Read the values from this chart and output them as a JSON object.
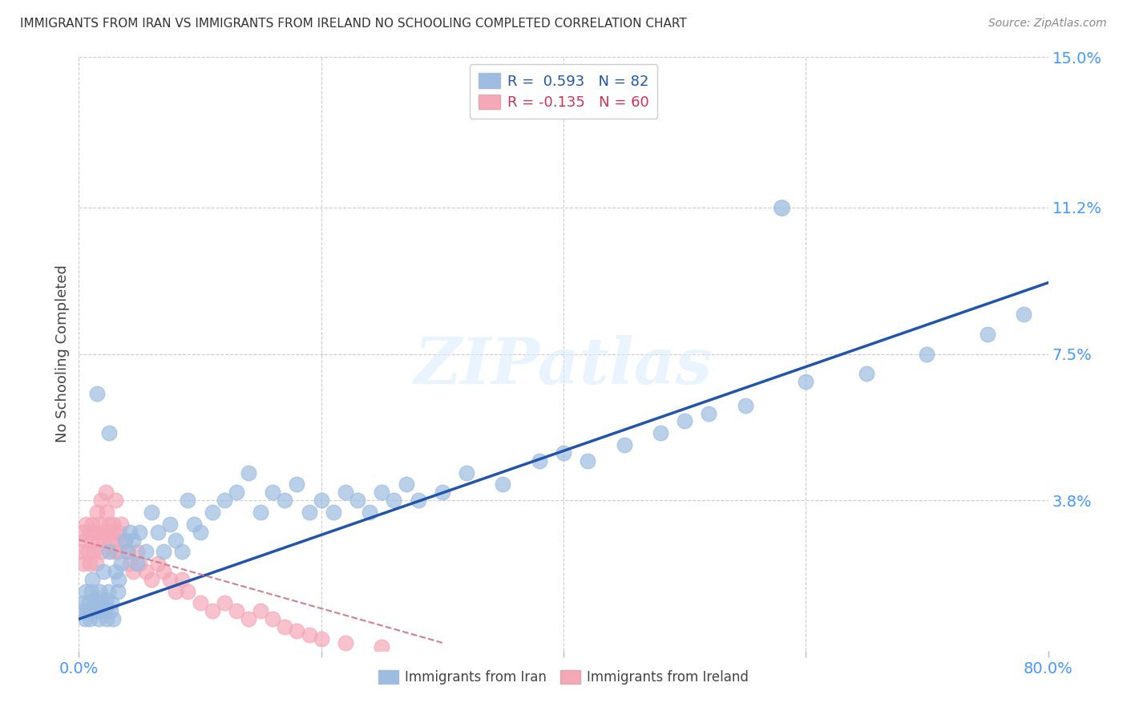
{
  "title": "IMMIGRANTS FROM IRAN VS IMMIGRANTS FROM IRELAND NO SCHOOLING COMPLETED CORRELATION CHART",
  "source": "Source: ZipAtlas.com",
  "ylabel": "No Schooling Completed",
  "xlim": [
    0.0,
    0.8
  ],
  "ylim": [
    0.0,
    0.15
  ],
  "xticks": [
    0.0,
    0.2,
    0.4,
    0.6,
    0.8
  ],
  "xtick_labels": [
    "0.0%",
    "",
    "",
    "",
    "80.0%"
  ],
  "yticks_right": [
    0.15,
    0.112,
    0.075,
    0.038,
    0.0
  ],
  "ytick_labels_right": [
    "15.0%",
    "11.2%",
    "7.5%",
    "3.8%",
    ""
  ],
  "iran_color": "#9dbce0",
  "ireland_color": "#f4a8b8",
  "iran_line_color": "#2255aa",
  "ireland_line_color": "#d08090",
  "legend_R_iran": "R =  0.593",
  "legend_N_iran": "N = 82",
  "legend_R_ireland": "R = -0.135",
  "legend_N_ireland": "N = 60",
  "legend_label_iran": "Immigrants from Iran",
  "legend_label_ireland": "Immigrants from Ireland",
  "watermark": "ZIPatlas",
  "background_color": "#ffffff",
  "grid_color": "#cccccc",
  "iran_scatter_x": [
    0.003,
    0.004,
    0.005,
    0.006,
    0.007,
    0.008,
    0.009,
    0.01,
    0.011,
    0.012,
    0.013,
    0.014,
    0.015,
    0.016,
    0.017,
    0.018,
    0.019,
    0.02,
    0.021,
    0.022,
    0.023,
    0.024,
    0.025,
    0.026,
    0.027,
    0.028,
    0.03,
    0.032,
    0.033,
    0.035,
    0.038,
    0.04,
    0.042,
    0.045,
    0.048,
    0.05,
    0.055,
    0.06,
    0.065,
    0.07,
    0.075,
    0.08,
    0.085,
    0.09,
    0.095,
    0.1,
    0.11,
    0.12,
    0.13,
    0.14,
    0.15,
    0.16,
    0.17,
    0.18,
    0.19,
    0.2,
    0.21,
    0.22,
    0.23,
    0.24,
    0.25,
    0.26,
    0.27,
    0.28,
    0.3,
    0.32,
    0.35,
    0.38,
    0.4,
    0.42,
    0.45,
    0.48,
    0.5,
    0.52,
    0.55,
    0.6,
    0.65,
    0.7,
    0.75,
    0.78,
    0.015,
    0.025
  ],
  "iran_scatter_y": [
    0.01,
    0.012,
    0.008,
    0.015,
    0.01,
    0.012,
    0.008,
    0.015,
    0.018,
    0.01,
    0.013,
    0.01,
    0.012,
    0.008,
    0.015,
    0.01,
    0.012,
    0.02,
    0.01,
    0.013,
    0.008,
    0.015,
    0.025,
    0.01,
    0.012,
    0.008,
    0.02,
    0.015,
    0.018,
    0.022,
    0.028,
    0.025,
    0.03,
    0.028,
    0.022,
    0.03,
    0.025,
    0.035,
    0.03,
    0.025,
    0.032,
    0.028,
    0.025,
    0.038,
    0.032,
    0.03,
    0.035,
    0.038,
    0.04,
    0.045,
    0.035,
    0.04,
    0.038,
    0.042,
    0.035,
    0.038,
    0.035,
    0.04,
    0.038,
    0.035,
    0.04,
    0.038,
    0.042,
    0.038,
    0.04,
    0.045,
    0.042,
    0.048,
    0.05,
    0.048,
    0.052,
    0.055,
    0.058,
    0.06,
    0.062,
    0.068,
    0.07,
    0.075,
    0.08,
    0.085,
    0.065,
    0.055
  ],
  "iran_outlier_x": [
    0.58
  ],
  "iran_outlier_y": [
    0.112
  ],
  "ireland_scatter_x": [
    0.002,
    0.003,
    0.004,
    0.005,
    0.006,
    0.007,
    0.008,
    0.009,
    0.01,
    0.011,
    0.012,
    0.013,
    0.014,
    0.015,
    0.016,
    0.017,
    0.018,
    0.019,
    0.02,
    0.021,
    0.022,
    0.023,
    0.024,
    0.025,
    0.026,
    0.027,
    0.028,
    0.029,
    0.03,
    0.031,
    0.032,
    0.033,
    0.035,
    0.038,
    0.04,
    0.042,
    0.045,
    0.048,
    0.05,
    0.055,
    0.06,
    0.065,
    0.07,
    0.075,
    0.08,
    0.085,
    0.09,
    0.1,
    0.11,
    0.12,
    0.13,
    0.14,
    0.15,
    0.16,
    0.17,
    0.18,
    0.19,
    0.2,
    0.22,
    0.25
  ],
  "ireland_scatter_y": [
    0.025,
    0.03,
    0.022,
    0.028,
    0.032,
    0.025,
    0.03,
    0.022,
    0.028,
    0.032,
    0.025,
    0.03,
    0.022,
    0.035,
    0.028,
    0.032,
    0.038,
    0.025,
    0.03,
    0.028,
    0.04,
    0.035,
    0.03,
    0.032,
    0.028,
    0.03,
    0.032,
    0.025,
    0.038,
    0.028,
    0.025,
    0.03,
    0.032,
    0.028,
    0.025,
    0.022,
    0.02,
    0.025,
    0.022,
    0.02,
    0.018,
    0.022,
    0.02,
    0.018,
    0.015,
    0.018,
    0.015,
    0.012,
    0.01,
    0.012,
    0.01,
    0.008,
    0.01,
    0.008,
    0.006,
    0.005,
    0.004,
    0.003,
    0.002,
    0.001
  ],
  "iran_line_x0": 0.0,
  "iran_line_x1": 0.8,
  "iran_line_y0": 0.008,
  "iran_line_y1": 0.093,
  "ireland_line_x0": 0.0,
  "ireland_line_x1": 0.3,
  "ireland_line_y0": 0.028,
  "ireland_line_y1": 0.002
}
